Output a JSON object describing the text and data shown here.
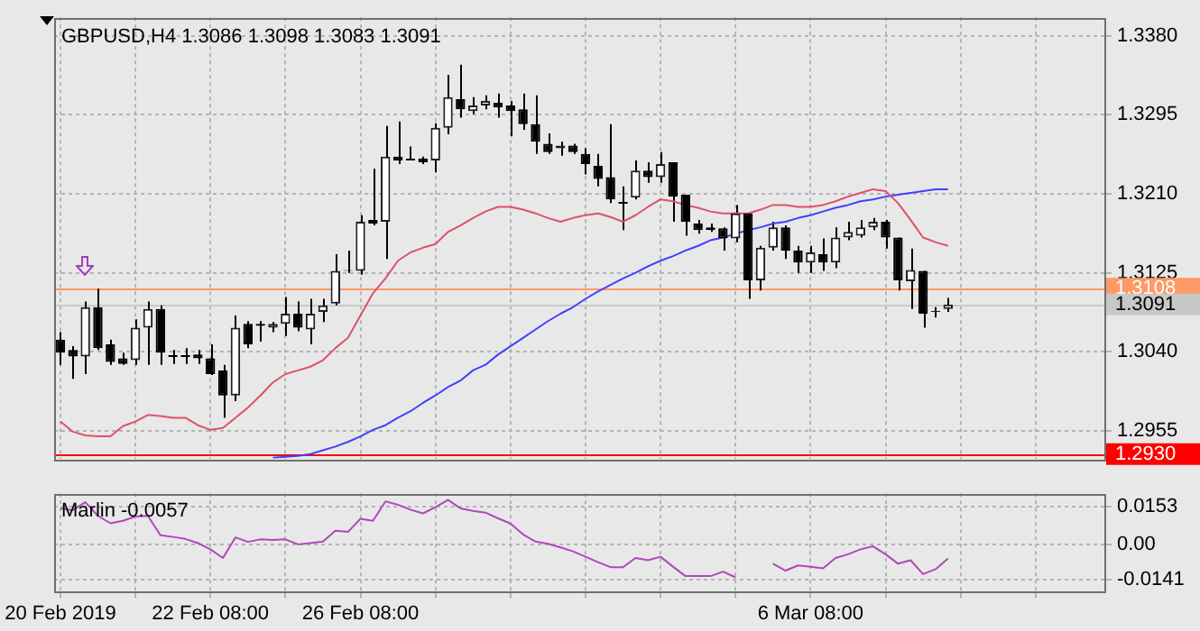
{
  "chart_data": [
    {
      "type": "candlestick",
      "title": "GBPUSD,H4 1.3086 1.3098 1.3083 1.3091",
      "categories": [
        null,
        null,
        null,
        null,
        null,
        null,
        null,
        null,
        null,
        null,
        null,
        null,
        null,
        null,
        null,
        null,
        null,
        null,
        null,
        null,
        null,
        null,
        null,
        null,
        null,
        null,
        null,
        null,
        null,
        null,
        null,
        null,
        null,
        null,
        null,
        null,
        null,
        null,
        null,
        null,
        null,
        null,
        null,
        null,
        null,
        null,
        null,
        null,
        null,
        null,
        null,
        null,
        null,
        null,
        null,
        null,
        null,
        null,
        null,
        null,
        null,
        null,
        null,
        null,
        null,
        null,
        null,
        null,
        null,
        null,
        null,
        null,
        null,
        null,
        null,
        null,
        null,
        null,
        null,
        null,
        null,
        null,
        null,
        null
      ],
      "ohlc": [
        [
          1.3053,
          1.3061,
          1.3026,
          1.3039
        ],
        [
          1.3042,
          1.3046,
          1.3011,
          1.3035
        ],
        [
          1.3035,
          1.3094,
          1.3016,
          1.3088
        ],
        [
          1.3088,
          1.3108,
          1.3042,
          1.3044
        ],
        [
          1.3048,
          1.3053,
          1.3026,
          1.3029
        ],
        [
          1.3033,
          1.3039,
          1.3026,
          1.3027
        ],
        [
          1.3031,
          1.3075,
          1.3026,
          1.3066
        ],
        [
          1.3066,
          1.3094,
          1.3026,
          1.3086
        ],
        [
          1.3086,
          1.309,
          1.3026,
          1.3039
        ],
        [
          1.3037,
          1.3042,
          1.3027,
          1.3037
        ],
        [
          1.3037,
          1.3044,
          1.3027,
          1.3037
        ],
        [
          1.3037,
          1.3042,
          1.3027,
          1.3033
        ],
        [
          1.3033,
          1.3048,
          1.3015,
          1.3016
        ],
        [
          1.302,
          1.3026,
          1.2969,
          1.2993
        ],
        [
          1.2993,
          1.3079,
          1.2987,
          1.3066
        ],
        [
          1.307,
          1.3073,
          1.3044,
          1.3048
        ],
        [
          1.307,
          1.3073,
          1.3051,
          1.3068
        ],
        [
          1.3066,
          1.3072,
          1.3061,
          1.307
        ],
        [
          1.307,
          1.3099,
          1.3057,
          1.3081
        ],
        [
          1.3081,
          1.3094,
          1.3062,
          1.3066
        ],
        [
          1.3064,
          1.3097,
          1.3048,
          1.3081
        ],
        [
          1.3083,
          1.3097,
          1.3072,
          1.309
        ],
        [
          1.3092,
          1.3145,
          1.309,
          1.3127
        ],
        [
          1.3127,
          1.3149,
          1.3125,
          1.3128
        ],
        [
          1.3127,
          1.3187,
          1.3123,
          1.318
        ],
        [
          1.3182,
          1.3237,
          1.3176,
          1.3178
        ],
        [
          1.318,
          1.3283,
          1.314,
          1.325
        ],
        [
          1.325,
          1.3288,
          1.3242,
          1.3246
        ],
        [
          1.3248,
          1.3261,
          1.3246,
          1.3248
        ],
        [
          1.3248,
          1.325,
          1.3242,
          1.3244
        ],
        [
          1.3246,
          1.3286,
          1.3233,
          1.3281
        ],
        [
          1.3281,
          1.3338,
          1.3274,
          1.3314
        ],
        [
          1.3312,
          1.3349,
          1.3292,
          1.3301
        ],
        [
          1.3299,
          1.3314,
          1.3296,
          1.3305
        ],
        [
          1.3305,
          1.3316,
          1.3301,
          1.331
        ],
        [
          1.3308,
          1.3318,
          1.3292,
          1.3303
        ],
        [
          1.3305,
          1.331,
          1.3272,
          1.3299
        ],
        [
          1.3301,
          1.3318,
          1.3279,
          1.3285
        ],
        [
          1.3285,
          1.3316,
          1.3253,
          1.3266
        ],
        [
          1.3264,
          1.3275,
          1.3253,
          1.3255
        ],
        [
          1.3259,
          1.3266,
          1.3251,
          1.3262
        ],
        [
          1.3262,
          1.3264,
          1.3253,
          1.3255
        ],
        [
          1.3253,
          1.3259,
          1.3231,
          1.3242
        ],
        [
          1.324,
          1.3253,
          1.3218,
          1.3226
        ],
        [
          1.3228,
          1.3285,
          1.32,
          1.3204
        ],
        [
          1.3202,
          1.3218,
          1.3171,
          1.3202
        ],
        [
          1.3206,
          1.3246,
          1.3204,
          1.3235
        ],
        [
          1.3235,
          1.3244,
          1.3222,
          1.3228
        ],
        [
          1.3228,
          1.3255,
          1.3222,
          1.3242
        ],
        [
          1.3244,
          1.3244,
          1.318,
          1.3207
        ],
        [
          1.3209,
          1.3209,
          1.3165,
          1.318
        ],
        [
          1.3178,
          1.3182,
          1.3167,
          1.3171
        ],
        [
          1.3174,
          1.3178,
          1.3169,
          1.3171
        ],
        [
          1.3173,
          1.3174,
          1.3149,
          1.3162
        ],
        [
          1.3162,
          1.3198,
          1.3158,
          1.3189
        ],
        [
          1.3189,
          1.3189,
          1.3097,
          1.3117
        ],
        [
          1.3117,
          1.3154,
          1.3106,
          1.3152
        ],
        [
          1.3152,
          1.318,
          1.3149,
          1.3174
        ],
        [
          1.3174,
          1.3176,
          1.314,
          1.3149
        ],
        [
          1.3149,
          1.3154,
          1.3125,
          1.3136
        ],
        [
          1.3136,
          1.3154,
          1.3125,
          1.3147
        ],
        [
          1.3145,
          1.3162,
          1.3127,
          1.3136
        ],
        [
          1.3136,
          1.3174,
          1.313,
          1.3163
        ],
        [
          1.3163,
          1.318,
          1.316,
          1.3169
        ],
        [
          1.3165,
          1.3182,
          1.3163,
          1.3174
        ],
        [
          1.3174,
          1.3184,
          1.3171,
          1.318
        ],
        [
          1.318,
          1.3182,
          1.3151,
          1.3163
        ],
        [
          1.3163,
          1.3163,
          1.3106,
          1.3117
        ],
        [
          1.3116,
          1.3151,
          1.3086,
          1.3128
        ],
        [
          1.3127,
          1.3127,
          1.3066,
          1.3081
        ],
        [
          1.3083,
          1.3088,
          1.3077,
          1.3084
        ],
        [
          1.3086,
          1.3098,
          1.3083,
          1.3091
        ],
        null,
        null,
        null,
        null,
        null,
        null,
        null,
        null,
        null,
        null,
        null,
        null
      ],
      "series": [
        {
          "type": "line",
          "color": "#e0506a",
          "values": [
            1.2965,
            1.2954,
            1.295,
            1.2949,
            1.2949,
            1.296,
            1.2965,
            1.2972,
            1.2971,
            1.2969,
            1.2969,
            1.2961,
            1.2956,
            1.2958,
            1.2969,
            1.298,
            1.2993,
            1.3007,
            1.3016,
            1.302,
            1.3024,
            1.3031,
            1.3044,
            1.3055,
            1.3079,
            1.3103,
            1.3119,
            1.3138,
            1.3147,
            1.3152,
            1.3156,
            1.3169,
            1.3176,
            1.3184,
            1.3191,
            1.3196,
            1.3196,
            1.3193,
            1.3189,
            1.3184,
            1.318,
            1.3184,
            1.3187,
            1.3189,
            1.3185,
            1.318,
            1.3187,
            1.3196,
            1.3204,
            1.3202,
            1.3198,
            1.3195,
            1.3191,
            1.3189,
            1.3189,
            1.3189,
            1.3193,
            1.3198,
            1.3198,
            1.3196,
            1.3196,
            1.3198,
            1.3202,
            1.3207,
            1.3211,
            1.3215,
            1.3213,
            1.32,
            1.3182,
            1.3163,
            1.3158,
            1.3154,
            null,
            null,
            null,
            null,
            null,
            null,
            null,
            null,
            null,
            null,
            null,
            null
          ]
        },
        {
          "type": "line",
          "color": "#4040ff",
          "values": [
            null,
            null,
            null,
            null,
            null,
            null,
            null,
            null,
            null,
            null,
            null,
            null,
            null,
            null,
            null,
            null,
            null,
            1.2926,
            1.2927,
            1.2928,
            1.293,
            1.2934,
            1.2938,
            1.2943,
            1.2949,
            1.2956,
            1.2961,
            1.2969,
            1.2976,
            1.2985,
            1.2993,
            1.3002,
            1.3009,
            1.302,
            1.3026,
            1.3037,
            1.3046,
            1.3055,
            1.3064,
            1.3073,
            1.3081,
            1.3088,
            1.3097,
            1.3105,
            1.3112,
            1.3119,
            1.3125,
            1.3132,
            1.3138,
            1.3143,
            1.3149,
            1.3154,
            1.316,
            1.3163,
            1.3167,
            1.3171,
            1.3174,
            1.3178,
            1.318,
            1.3184,
            1.3187,
            1.3191,
            1.3195,
            1.3198,
            1.3202,
            1.3204,
            1.3207,
            1.3209,
            1.3211,
            1.3213,
            1.3215,
            1.3215,
            null,
            null,
            null,
            null,
            null,
            null,
            null,
            null,
            null,
            null,
            null,
            null
          ]
        }
      ],
      "ylim": [
        1.2925,
        1.34
      ],
      "yticks": [
        {
          "value": 1.338,
          "label": "1.3380"
        },
        {
          "value": 1.3295,
          "label": "1.3295"
        },
        {
          "value": 1.321,
          "label": "1.3210"
        },
        {
          "value": 1.3125,
          "label": "1.3125"
        },
        {
          "value": 1.304,
          "label": "1.3040"
        },
        {
          "value": 1.2955,
          "label": "1.2955"
        }
      ],
      "ref_lines": [
        {
          "axis": "y",
          "value": 1.3108,
          "label": "1.3108",
          "color": "#ff9966"
        },
        {
          "axis": "y",
          "value": 1.3091,
          "label": "1.3091",
          "color": "#c8c8c8"
        },
        {
          "axis": "y",
          "value": 1.293,
          "label": "1.2930",
          "color": "#ff0000"
        }
      ],
      "grid": true,
      "tick_labels": "y"
    },
    {
      "type": "line",
      "title": "Marlin -0.0057",
      "categories": [
        "20 Feb 2019",
        null,
        null,
        null,
        null,
        null,
        null,
        null,
        null,
        null,
        null,
        null,
        "22 Feb 08:00",
        null,
        null,
        null,
        null,
        null,
        null,
        null,
        null,
        null,
        null,
        null,
        "26 Feb 08:00",
        null,
        null,
        null,
        null,
        null,
        null,
        null,
        null,
        null,
        null,
        null,
        null,
        null,
        null,
        null,
        null,
        null,
        null,
        null,
        null,
        null,
        null,
        null,
        null,
        null,
        null,
        null,
        null,
        null,
        null,
        null,
        null,
        null,
        null,
        null,
        "6 Mar 08:00",
        null,
        null,
        null,
        null,
        null,
        null,
        null,
        null,
        null,
        null,
        null,
        null,
        null,
        null,
        null,
        null,
        null,
        null,
        null,
        null,
        null,
        null,
        null
      ],
      "series": [
        {
          "color": "#b048b8",
          "values": [
            0.0145,
            0.0138,
            0.017,
            0.0115,
            0.0085,
            0.0095,
            0.0112,
            0.0115,
            0.0037,
            0.003,
            0.0022,
            0.0005,
            -0.002,
            -0.0055,
            0.0028,
            0.001,
            0.002,
            0.0018,
            0.002,
            0.0,
            0.0005,
            0.0011,
            0.0055,
            0.005,
            0.0103,
            0.0095,
            0.0173,
            0.016,
            0.014,
            0.0125,
            0.015,
            0.0179,
            0.0145,
            0.0135,
            0.0128,
            0.0105,
            0.0084,
            0.004,
            0.0011,
            0.0002,
            -0.0012,
            -0.0028,
            -0.005,
            -0.0072,
            -0.0092,
            -0.0092,
            -0.0055,
            -0.0064,
            -0.005,
            -0.009,
            -0.0128,
            -0.0128,
            -0.0128,
            -0.011,
            -0.0133,
            null,
            null,
            -0.0078,
            -0.0106,
            -0.0085,
            -0.009,
            -0.0097,
            -0.0055,
            -0.004,
            -0.002,
            -0.0008,
            -0.004,
            -0.0078,
            -0.0064,
            -0.012,
            -0.01,
            -0.0057,
            null,
            null,
            null,
            null,
            null,
            null,
            null,
            null,
            null,
            null,
            null,
            null
          ]
        }
      ],
      "ylim": [
        -0.0188,
        0.0206
      ],
      "yticks": [
        0.0153,
        {
          "value": 0,
          "label": "0.00"
        },
        -0.0141
      ],
      "grid": true
    }
  ]
}
